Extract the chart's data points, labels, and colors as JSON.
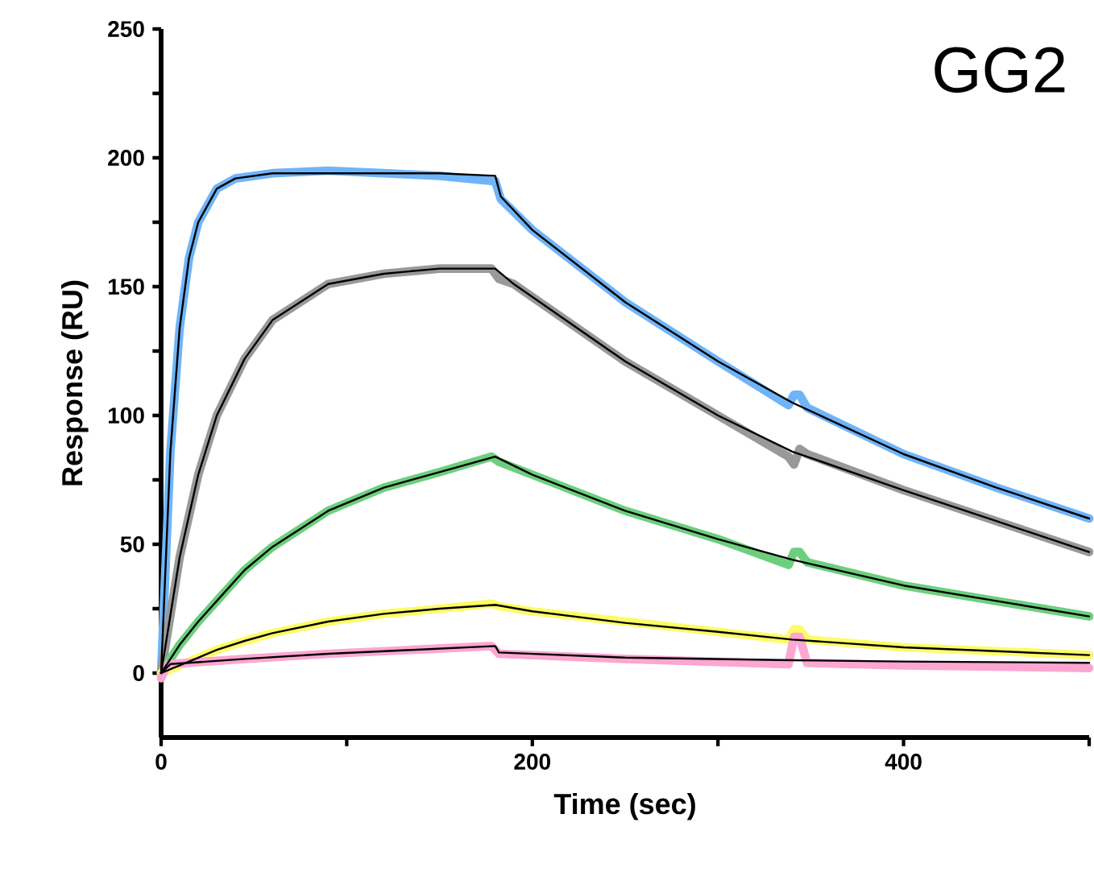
{
  "chart_data": {
    "type": "line",
    "title": "GG2",
    "xlabel": "Time (sec)",
    "ylabel": "Response (RU)",
    "xlim": [
      0,
      500
    ],
    "xticks": [
      0,
      {
        "value": 100,
        "label": null
      },
      200,
      {
        "value": 300,
        "label": null
      },
      400,
      {
        "value": 500,
        "label": null
      }
    ],
    "ylim": [
      -25,
      250
    ],
    "yticks": [
      0,
      {
        "value": 25,
        "label": null
      },
      50,
      {
        "value": 75,
        "label": null
      },
      100,
      {
        "value": 125,
        "label": null
      },
      150,
      {
        "value": 175,
        "label": null
      },
      200,
      {
        "value": 225,
        "label": null
      },
      250
    ],
    "grid": false,
    "marker": "none",
    "line_style": "solid",
    "series": [
      {
        "color": "#6fb4f8",
        "x": [
          0,
          5,
          10,
          15,
          20,
          30,
          40,
          60,
          90,
          120,
          150,
          178,
          180,
          183,
          200,
          250,
          300,
          338,
          341,
          344,
          348,
          400,
          450,
          500
        ],
        "values": [
          0,
          86,
          134,
          161,
          175,
          188,
          192,
          194,
          195,
          194,
          193,
          191,
          191,
          184,
          172,
          144,
          121,
          104,
          108,
          108,
          103,
          85,
          72,
          60
        ]
      },
      {
        "color": "#999999",
        "x": [
          0,
          10,
          20,
          30,
          45,
          60,
          90,
          120,
          150,
          178,
          182,
          190,
          200,
          250,
          300,
          338,
          341,
          344,
          348,
          400,
          450,
          500
        ],
        "values": [
          0,
          45,
          77,
          100,
          122,
          137,
          151,
          155,
          157,
          157,
          153,
          151,
          146,
          121,
          100,
          84,
          81,
          87,
          85,
          71,
          59,
          47
        ]
      },
      {
        "color": "#6dcf7d",
        "x": [
          0,
          10,
          20,
          30,
          45,
          60,
          90,
          120,
          150,
          178,
          182,
          200,
          250,
          300,
          338,
          341,
          344,
          348,
          400,
          450,
          500
        ],
        "values": [
          0,
          11,
          20,
          28,
          40,
          49,
          63,
          72,
          78,
          84,
          82,
          77,
          63,
          52,
          42,
          47,
          47,
          43,
          34,
          28,
          22
        ]
      },
      {
        "color": "#fdfc66",
        "x": [
          0,
          10,
          20,
          30,
          45,
          60,
          90,
          120,
          150,
          178,
          182,
          200,
          250,
          300,
          338,
          341,
          344,
          348,
          400,
          450,
          500
        ],
        "values": [
          0,
          3,
          6,
          9,
          12.5,
          15.5,
          20,
          23,
          25,
          27,
          26,
          24,
          20,
          16,
          13,
          17,
          17,
          13,
          10,
          8.5,
          7
        ]
      },
      {
        "color": "#fca6d1",
        "x": [
          0,
          3,
          5,
          45,
          90,
          135,
          178,
          182,
          250,
          338,
          341,
          344,
          348,
          400,
          500
        ],
        "values": [
          -2,
          3,
          3.5,
          5.5,
          7.5,
          9,
          10.5,
          7.5,
          5.5,
          3.5,
          14,
          14,
          4,
          3,
          2
        ]
      },
      {
        "color": "#000000",
        "x": [
          0,
          5,
          10,
          15,
          20,
          30,
          40,
          60,
          90,
          120,
          150,
          180,
          183,
          200,
          250,
          300,
          340,
          400,
          450,
          500
        ],
        "values": [
          0,
          86,
          134,
          161,
          175,
          188,
          192,
          194,
          194,
          194,
          194,
          193,
          185,
          172,
          144,
          121,
          105,
          85,
          72,
          60
        ]
      },
      {
        "color": "#000000",
        "x": [
          0,
          10,
          20,
          30,
          45,
          60,
          90,
          120,
          150,
          180,
          190,
          200,
          250,
          300,
          340,
          400,
          450,
          500
        ],
        "values": [
          0,
          45,
          77,
          100,
          122,
          137,
          151,
          155,
          157,
          157,
          151,
          146,
          121,
          100,
          86,
          71,
          59,
          47
        ]
      },
      {
        "color": "#000000",
        "x": [
          0,
          10,
          20,
          30,
          45,
          60,
          90,
          120,
          150,
          180,
          200,
          250,
          300,
          340,
          400,
          450,
          500
        ],
        "values": [
          0,
          11,
          20,
          28,
          40,
          49,
          63,
          72,
          78,
          84,
          77,
          63,
          52,
          44,
          34,
          28,
          22
        ]
      },
      {
        "color": "#000000",
        "x": [
          0,
          10,
          20,
          30,
          45,
          60,
          90,
          120,
          150,
          180,
          200,
          250,
          300,
          340,
          400,
          450,
          500
        ],
        "values": [
          0,
          3,
          6,
          9,
          12.5,
          15.5,
          20,
          23,
          25,
          26.5,
          24,
          19.5,
          16,
          13,
          10,
          8.5,
          7
        ]
      },
      {
        "color": "#000000",
        "x": [
          0,
          5,
          45,
          90,
          135,
          180,
          182,
          250,
          340,
          400,
          500
        ],
        "values": [
          0,
          3.5,
          5.5,
          7.5,
          9,
          10.5,
          8,
          6,
          5,
          4.5,
          4
        ]
      }
    ]
  }
}
